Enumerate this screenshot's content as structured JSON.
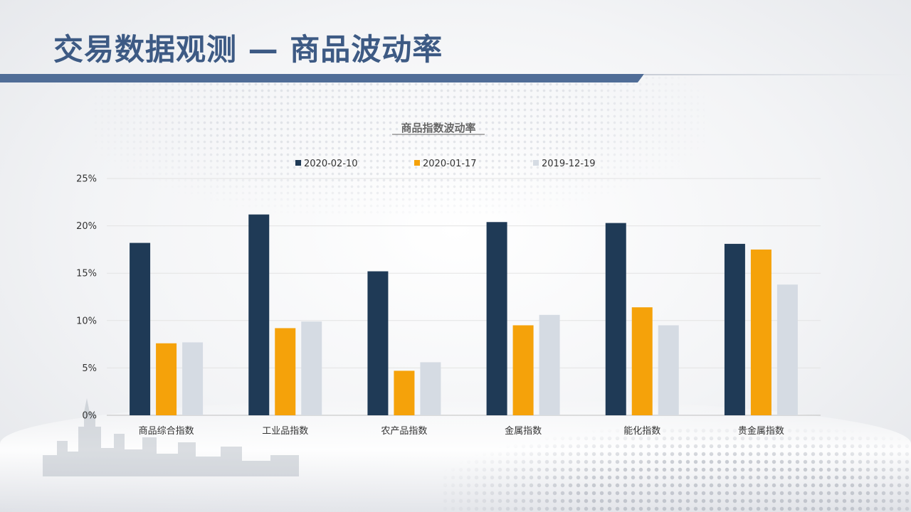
{
  "page": {
    "title": "交易数据观测 — 商品波动率"
  },
  "chart_data": {
    "type": "bar",
    "title": "商品指数波动率",
    "xlabel": "",
    "ylabel": "",
    "categories": [
      "商品综合指数",
      "工业品指数",
      "农产品指数",
      "金属指数",
      "能化指数",
      "贵金属指数"
    ],
    "series": [
      {
        "name": "2020-02-10",
        "color": "#1f3a56",
        "values": [
          18.2,
          21.2,
          15.2,
          20.4,
          20.3,
          18.1
        ]
      },
      {
        "name": "2020-01-17",
        "color": "#f5a20a",
        "values": [
          7.6,
          9.2,
          4.7,
          9.5,
          11.4,
          17.5
        ]
      },
      {
        "name": "2019-12-19",
        "color": "#d5dbe3",
        "values": [
          7.7,
          9.9,
          5.6,
          10.6,
          9.5,
          13.8
        ]
      }
    ],
    "ylim": [
      0,
      25
    ],
    "yticks": [
      "0%",
      "5%",
      "10%",
      "15%",
      "20%",
      "25%"
    ],
    "ytick_values": [
      0,
      5,
      10,
      15,
      20,
      25
    ],
    "grid": true,
    "legend": "top-center"
  }
}
